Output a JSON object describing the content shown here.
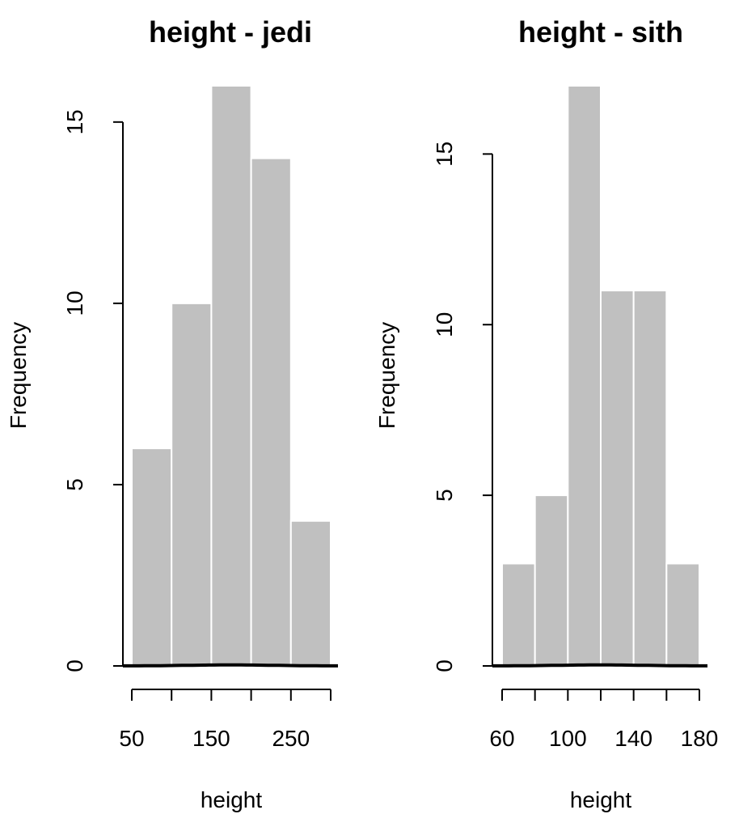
{
  "colors": {
    "bar_fill": "#c0c0c0",
    "bar_border": "#ffffff",
    "axis": "#000000",
    "density_line": "#000000"
  },
  "chart_data": [
    {
      "type": "bar",
      "title": "height - jedi",
      "xlabel": "height",
      "ylabel": "Frequency",
      "bins": [
        {
          "from": 50,
          "to": 100,
          "count": 6
        },
        {
          "from": 100,
          "to": 150,
          "count": 10
        },
        {
          "from": 150,
          "to": 200,
          "count": 16
        },
        {
          "from": 200,
          "to": 250,
          "count": 14
        },
        {
          "from": 250,
          "to": 300,
          "count": 4
        }
      ],
      "xlim": [
        50,
        300
      ],
      "ylim": [
        0,
        16
      ],
      "x_ticks": [
        50,
        100,
        150,
        200,
        250,
        300
      ],
      "x_tick_labels": [
        {
          "value": 50,
          "label": "50"
        },
        {
          "value": 150,
          "label": "150"
        },
        {
          "value": 250,
          "label": "250"
        }
      ],
      "y_ticks": [
        {
          "value": 0,
          "label": "0"
        },
        {
          "value": 5,
          "label": "5"
        },
        {
          "value": 10,
          "label": "10"
        },
        {
          "value": 15,
          "label": "15"
        }
      ],
      "grid": false,
      "density_overlay": true
    },
    {
      "type": "bar",
      "title": "height - sith",
      "xlabel": "height",
      "ylabel": "Frequency",
      "bins": [
        {
          "from": 60,
          "to": 80,
          "count": 3
        },
        {
          "from": 80,
          "to": 100,
          "count": 5
        },
        {
          "from": 100,
          "to": 120,
          "count": 17
        },
        {
          "from": 120,
          "to": 140,
          "count": 11
        },
        {
          "from": 140,
          "to": 160,
          "count": 11
        },
        {
          "from": 160,
          "to": 180,
          "count": 3
        }
      ],
      "xlim": [
        60,
        180
      ],
      "ylim": [
        0,
        17
      ],
      "x_ticks": [
        60,
        80,
        100,
        120,
        140,
        160,
        180
      ],
      "x_tick_labels": [
        {
          "value": 60,
          "label": "60"
        },
        {
          "value": 100,
          "label": "100"
        },
        {
          "value": 140,
          "label": "140"
        },
        {
          "value": 180,
          "label": "180"
        }
      ],
      "y_ticks": [
        {
          "value": 0,
          "label": "0"
        },
        {
          "value": 5,
          "label": "5"
        },
        {
          "value": 10,
          "label": "10"
        },
        {
          "value": 15,
          "label": "15"
        }
      ],
      "grid": false,
      "density_overlay": true
    }
  ]
}
